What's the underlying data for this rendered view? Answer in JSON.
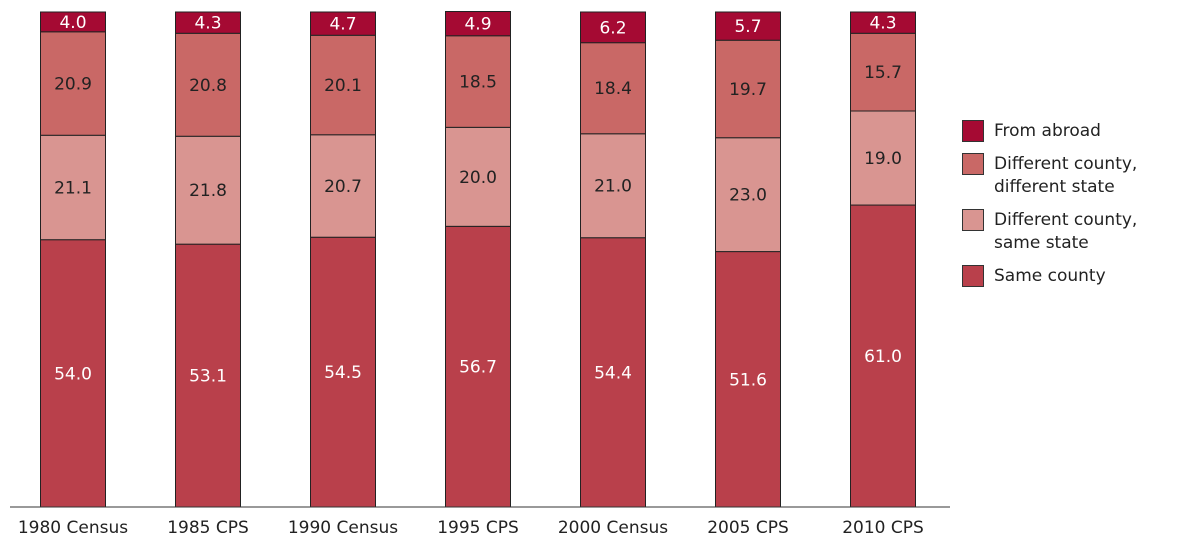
{
  "chart_data": {
    "type": "stacked_bar",
    "categories": [
      "1980 Census",
      "1985 CPS",
      "1990 Census",
      "1995 CPS",
      "2000 Census",
      "2005 CPS",
      "2010 CPS"
    ],
    "ylim": [
      0,
      100
    ],
    "series": [
      {
        "name": "Same county",
        "color": "#b9404b",
        "label_color": "#ffffff",
        "values": [
          54.0,
          53.1,
          54.5,
          56.7,
          54.4,
          51.6,
          61.0
        ],
        "value_labels": [
          "54.0",
          "53.1",
          "54.5",
          "56.7",
          "54.4",
          "51.6",
          "61.0"
        ]
      },
      {
        "name": "Different county, same state",
        "color": "#d99591",
        "label_color": "#222222",
        "values": [
          21.1,
          21.8,
          20.7,
          20.0,
          21.0,
          23.0,
          19.0
        ],
        "value_labels": [
          "21.1",
          "21.8",
          "20.7",
          "20.0",
          "21.0",
          "23.0",
          "19.0"
        ]
      },
      {
        "name": "Different county, different state",
        "color": "#c96866",
        "label_color": "#222222",
        "values": [
          20.9,
          20.8,
          20.1,
          18.5,
          18.4,
          19.7,
          15.7
        ],
        "value_labels": [
          "20.9",
          "20.8",
          "20.1",
          "18.5",
          "18.4",
          "19.7",
          "15.7"
        ]
      },
      {
        "name": "From abroad",
        "color": "#a50a33",
        "label_color": "#ffffff",
        "values": [
          4.0,
          4.3,
          4.7,
          4.9,
          6.2,
          5.7,
          4.3
        ],
        "value_labels": [
          "4.0",
          "4.3",
          "4.7",
          "4.9",
          "6.2",
          "5.7",
          "4.3"
        ]
      }
    ]
  }
}
